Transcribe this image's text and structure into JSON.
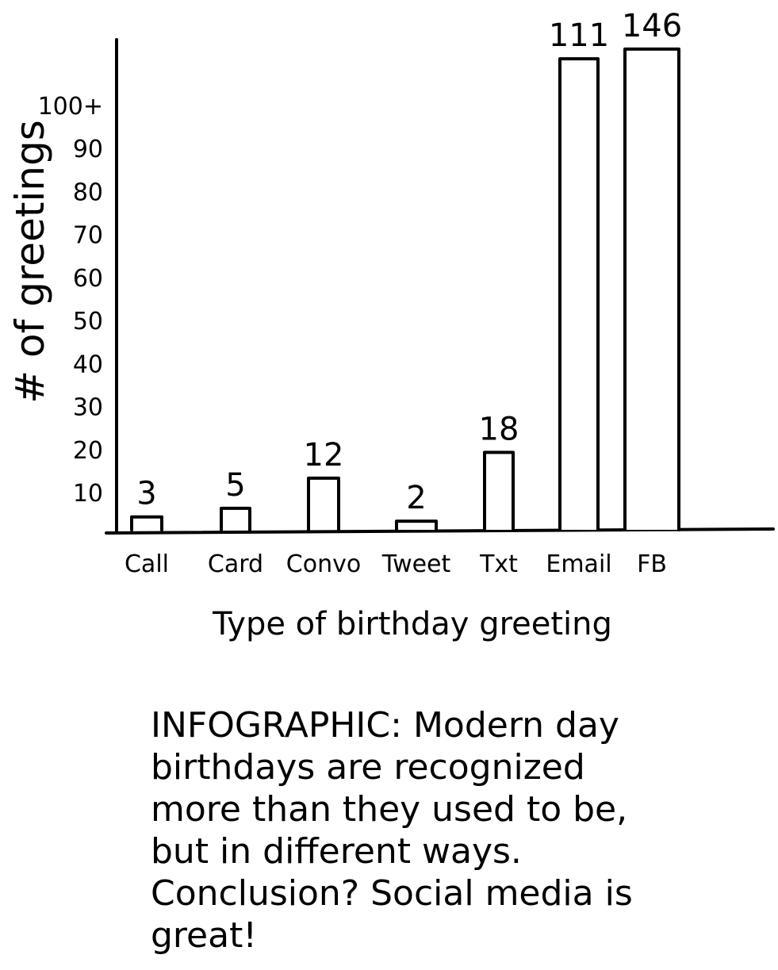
{
  "chart_data": {
    "type": "bar",
    "title": "",
    "xlabel": "Type of birthday greeting",
    "ylabel": "# of greetings",
    "categories": [
      "Call",
      "Card",
      "Convo",
      "Tweet",
      "Txt",
      "Email",
      "FB"
    ],
    "values": [
      3,
      5,
      12,
      2,
      18,
      111,
      146
    ],
    "data_labels": [
      "3",
      "5",
      "12",
      "2",
      "18",
      "111",
      "146"
    ],
    "y_ticks": [
      "10",
      "20",
      "30",
      "40",
      "50",
      "60",
      "70",
      "80",
      "90",
      "100+"
    ],
    "ylim": [
      0,
      100
    ],
    "grid": false,
    "legend": "none",
    "bar_fill": "#ffffff",
    "stroke_color": "#000000"
  },
  "caption": "INFOGRAPHIC: Modern day birthdays are recognized more than they used to be, but in different ways. Conclusion? Social media is great!"
}
